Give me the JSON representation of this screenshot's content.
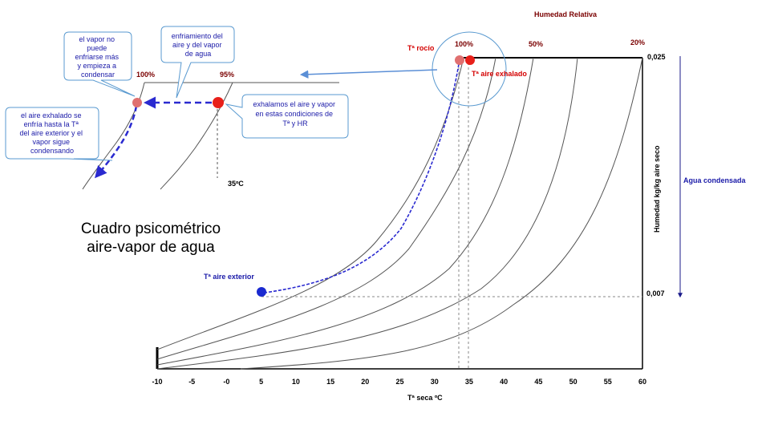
{
  "title_lines": [
    "Cuadro psicométrico",
    "aire-vapor de agua"
  ],
  "chart_data": {
    "type": "line",
    "x_axis_label": "Tª seca ºC",
    "y_axis_label": "Humedad kg/kg aire seco",
    "x_ticks": [
      "-10",
      "-5",
      "-0",
      "5",
      "10",
      "15",
      "20",
      "25",
      "30",
      "35",
      "40",
      "45",
      "50",
      "55",
      "60"
    ],
    "y_ticks": [
      "0,025",
      "0,007"
    ],
    "xlim": [
      -10,
      60
    ],
    "ylim": [
      0,
      0.025
    ],
    "humidity_header": "Humedad Relativa",
    "rh_labels": [
      "100%",
      "50%",
      "20%"
    ],
    "annotations": {
      "dew_point": "Tª rocío",
      "exhaled_air": "Tª aire exhalado",
      "outside_air": "Tª aire exterior",
      "condensed_water": "Agua condensada"
    }
  },
  "inset": {
    "rh_labels": [
      "100%",
      "95%"
    ],
    "temp_label": "35ºC"
  },
  "callouts": {
    "cannot_cool": "el vapor no puede enfriarse más y empieza a condensar",
    "cooling": "enfriamiento del aire y del vapor de agua",
    "exhale": "exhalamos el aire y vapor en estas condiciones de Tª y HR",
    "cooled_outside": "el aire exhalado se enfría hasta la Tª del aire exterior y el vapor sigue condensando"
  },
  "colors": {
    "curve": "#555555",
    "dashed_path": "#2a2ad0",
    "point_red": "#e8201a",
    "point_pink": "#e07070",
    "point_blue": "#1a2ad0",
    "arrow_light_blue": "#5b8fd6",
    "circle": "#5a9ad0",
    "rh_label": "#7a0000"
  }
}
